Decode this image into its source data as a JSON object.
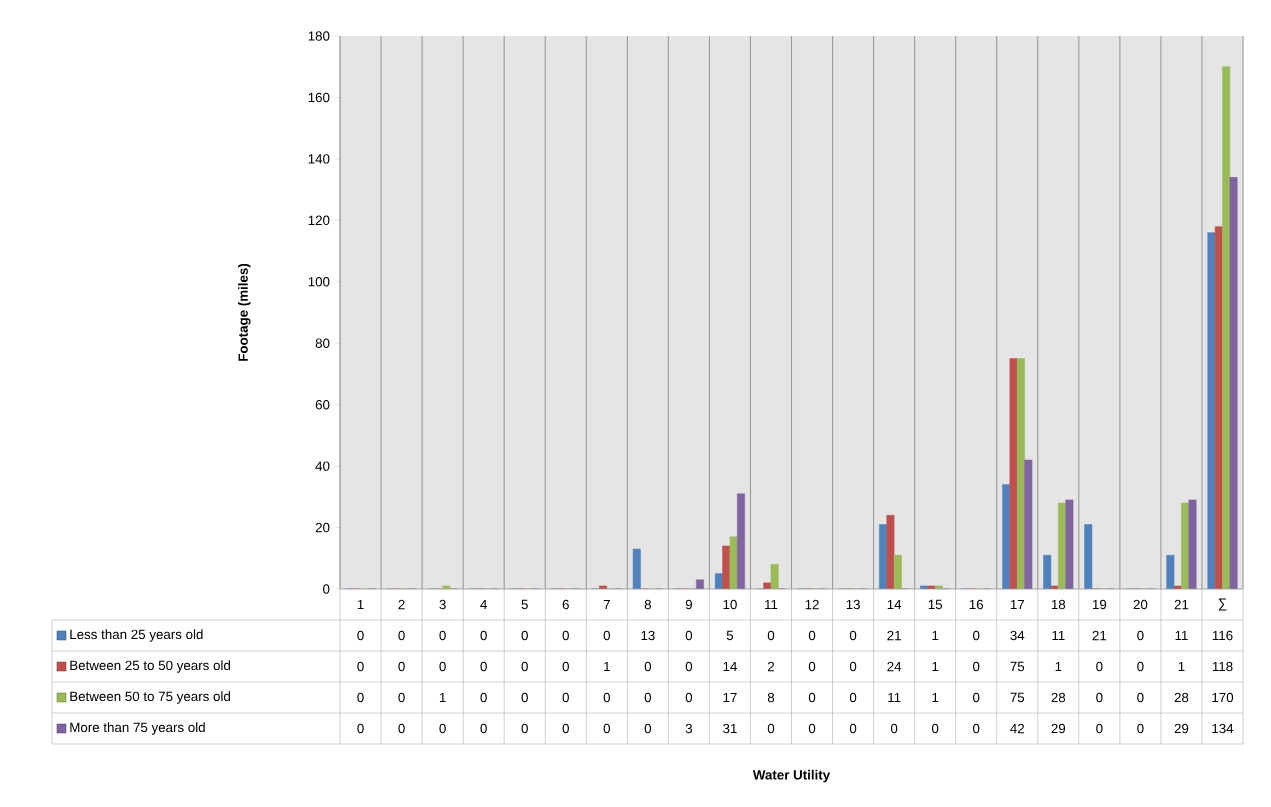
{
  "chart_data": {
    "type": "bar",
    "annotations": [
      "Water Utility"
    ],
    "ylabel": "Footage (miles)",
    "categories": [
      "1",
      "2",
      "3",
      "4",
      "5",
      "6",
      "7",
      "8",
      "9",
      "10",
      "11",
      "12",
      "13",
      "14",
      "15",
      "16",
      "17",
      "18",
      "19",
      "20",
      "21",
      "∑"
    ],
    "series": [
      {
        "name": "Less than 25 years old",
        "color": "#4f81bd",
        "values": [
          0,
          0,
          0,
          0,
          0,
          0,
          0,
          13,
          0,
          5,
          0,
          0,
          0,
          21,
          1,
          0,
          34,
          11,
          21,
          0,
          11,
          116
        ]
      },
      {
        "name": "Between 25 to 50 years old",
        "color": "#c0504d",
        "values": [
          0,
          0,
          0,
          0,
          0,
          0,
          1,
          0,
          0,
          14,
          2,
          0,
          0,
          24,
          1,
          0,
          75,
          1,
          0,
          0,
          1,
          118
        ]
      },
      {
        "name": "Between 50 to 75 years old",
        "color": "#9bbb59",
        "values": [
          0,
          0,
          1,
          0,
          0,
          0,
          0,
          0,
          0,
          17,
          8,
          0,
          0,
          11,
          1,
          0,
          75,
          28,
          0,
          0,
          28,
          170
        ]
      },
      {
        "name": "More than 75 years old",
        "color": "#8064a2",
        "values": [
          0,
          0,
          0,
          0,
          0,
          0,
          0,
          0,
          3,
          31,
          0,
          0,
          0,
          0,
          0,
          0,
          42,
          29,
          0,
          0,
          29,
          134
        ]
      }
    ],
    "ylim": [
      0,
      180
    ],
    "yticks": [
      0,
      20,
      40,
      60,
      80,
      100,
      120,
      140,
      160,
      180
    ],
    "grid": "x",
    "legend": "bottom left",
    "data_labels": true
  }
}
